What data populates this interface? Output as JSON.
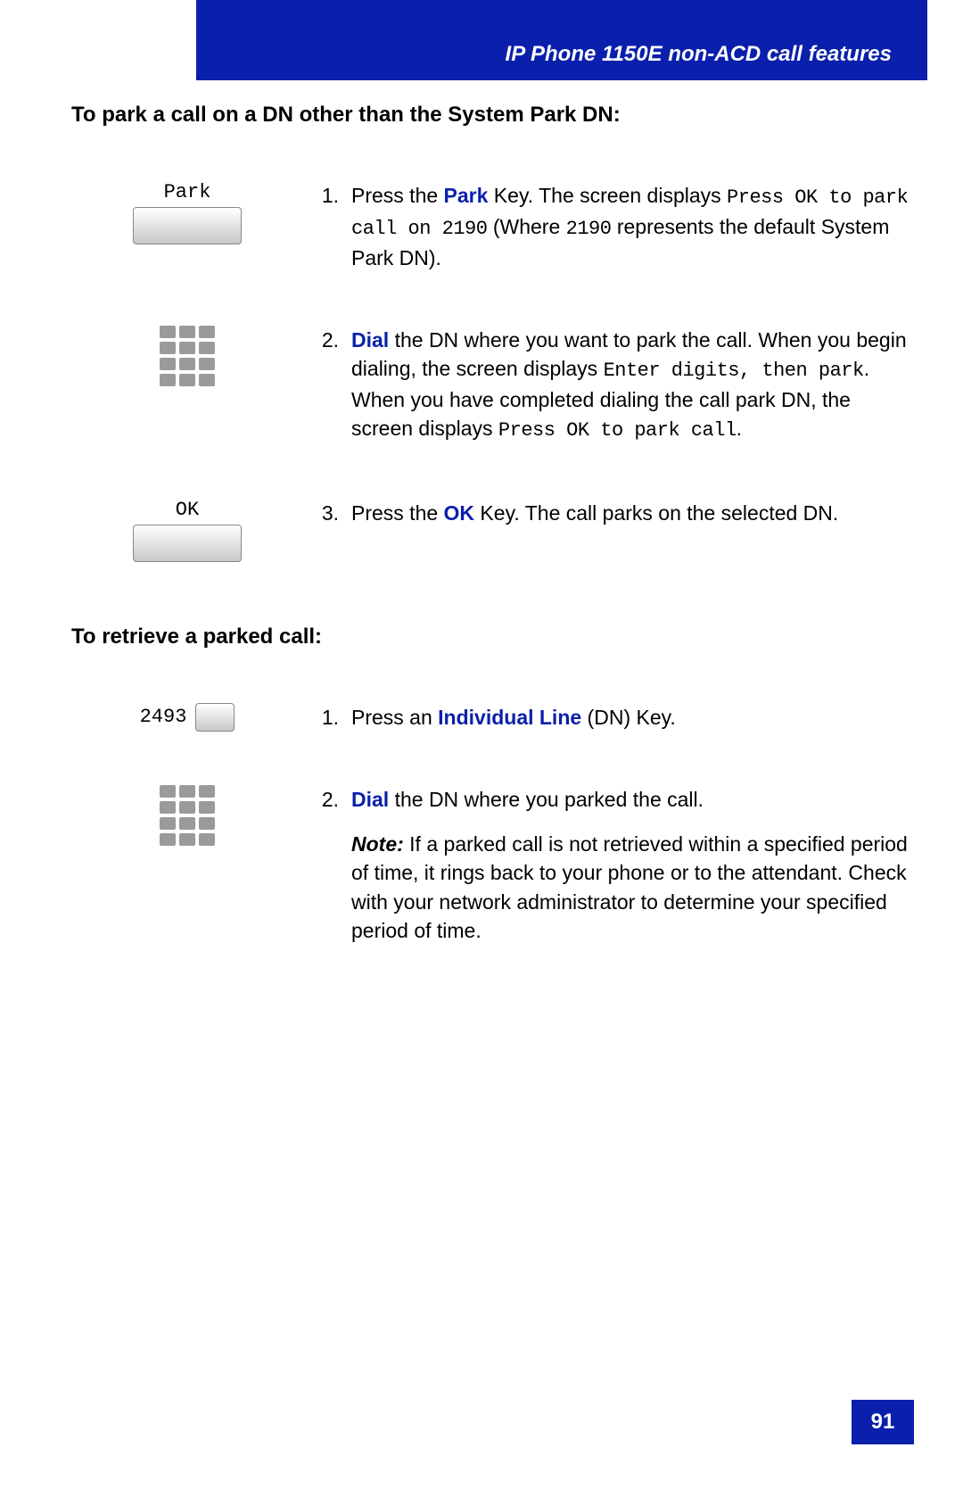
{
  "header": {
    "title": "IP Phone 1150E non-ACD call features"
  },
  "section1": {
    "heading": "To park a call on a DN other than the System Park DN:",
    "steps": [
      {
        "num": "1.",
        "icon": "softkey",
        "icon_label": "Park",
        "parts": [
          {
            "t": "Press the ",
            "cls": ""
          },
          {
            "t": "Park",
            "cls": "kw"
          },
          {
            "t": " Key. The screen displays ",
            "cls": ""
          },
          {
            "t": "Press OK to park call on 2190",
            "cls": "mono"
          },
          {
            "t": " (Where ",
            "cls": ""
          },
          {
            "t": "2190",
            "cls": "mono"
          },
          {
            "t": " represents the default System Park DN).",
            "cls": ""
          }
        ]
      },
      {
        "num": "2.",
        "icon": "keypad",
        "parts": [
          {
            "t": "Dial",
            "cls": "kw"
          },
          {
            "t": " the DN where you want to park the call. When you begin dialing, the screen displays ",
            "cls": ""
          },
          {
            "t": "Enter digits, then park",
            "cls": "mono"
          },
          {
            "t": ". When you have completed dialing the call park DN, the screen displays ",
            "cls": ""
          },
          {
            "t": "Press OK to park call",
            "cls": "mono"
          },
          {
            "t": ".",
            "cls": ""
          }
        ]
      },
      {
        "num": "3.",
        "icon": "softkey",
        "icon_label": "OK",
        "parts": [
          {
            "t": "Press the ",
            "cls": ""
          },
          {
            "t": "OK",
            "cls": "kw"
          },
          {
            "t": " Key. The call parks on the selected DN.",
            "cls": ""
          }
        ]
      }
    ]
  },
  "section2": {
    "heading": "To retrieve a parked call:",
    "steps": [
      {
        "num": "1.",
        "icon": "linekey",
        "icon_label": "2493",
        "parts": [
          {
            "t": "Press an ",
            "cls": ""
          },
          {
            "t": "Individual Line",
            "cls": "kw"
          },
          {
            "t": " (DN) Key.",
            "cls": ""
          }
        ]
      },
      {
        "num": "2.",
        "icon": "keypad",
        "parts": [
          {
            "t": "Dial",
            "cls": "kw"
          },
          {
            "t": " the DN where you parked the call.",
            "cls": ""
          }
        ],
        "note_label": "Note:",
        "note_body": " If a parked call is not retrieved within a specified period of time, it rings back to your phone or to the attendant. Check with your network administrator to determine your specified period of time."
      }
    ]
  },
  "page_number": "91"
}
